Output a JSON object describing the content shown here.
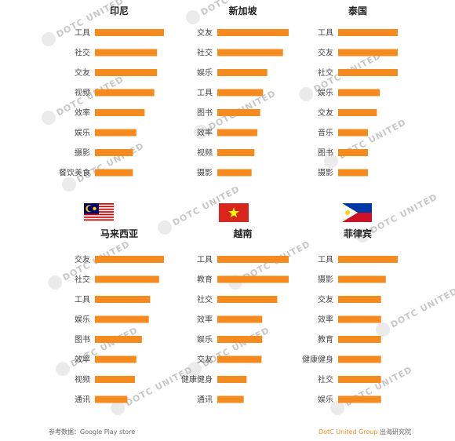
{
  "chart_data": [
    {
      "type": "bar",
      "title": "印尼",
      "categories": [
        "工具",
        "社交",
        "交友",
        "视频",
        "效率",
        "娱乐",
        "摄影",
        "餐饮美食"
      ],
      "values": [
        100,
        90,
        90,
        86,
        72,
        60,
        55,
        55
      ]
    },
    {
      "type": "bar",
      "title": "新加坡",
      "categories": [
        "交友",
        "社交",
        "娱乐",
        "工具",
        "图书",
        "效率",
        "视频",
        "摄影"
      ],
      "values": [
        100,
        92,
        70,
        64,
        60,
        56,
        52,
        48
      ]
    },
    {
      "type": "bar",
      "title": "泰国",
      "categories": [
        "工具",
        "交友",
        "社交",
        "娱乐",
        "交友",
        "音乐",
        "图书",
        "摄影"
      ],
      "values": [
        100,
        100,
        100,
        70,
        65,
        50,
        50,
        50
      ]
    },
    {
      "type": "bar",
      "title": "马来西亚",
      "categories": [
        "交友",
        "社交",
        "工具",
        "娱乐",
        "图书",
        "效率",
        "视频",
        "通讯"
      ],
      "values": [
        100,
        93,
        80,
        78,
        68,
        60,
        58,
        47
      ]
    },
    {
      "type": "bar",
      "title": "越南",
      "categories": [
        "工具",
        "教育",
        "社交",
        "效率",
        "娱乐",
        "交友",
        "健康健身",
        "通讯"
      ],
      "values": [
        100,
        100,
        84,
        63,
        63,
        62,
        41,
        37
      ]
    },
    {
      "type": "bar",
      "title": "菲律宾",
      "categories": [
        "工具",
        "摄影",
        "交友",
        "效率",
        "教育",
        "健康健身",
        "社交",
        "娱乐"
      ],
      "values": [
        100,
        80,
        72,
        72,
        72,
        72,
        72,
        72
      ]
    }
  ],
  "colors": {
    "bar": "#f58a1f"
  },
  "footer": {
    "source": "参考数据：Google Play store",
    "brand": "DotC United Group",
    "org": " 出海研究院"
  },
  "watermark": "DOTC UNITED"
}
